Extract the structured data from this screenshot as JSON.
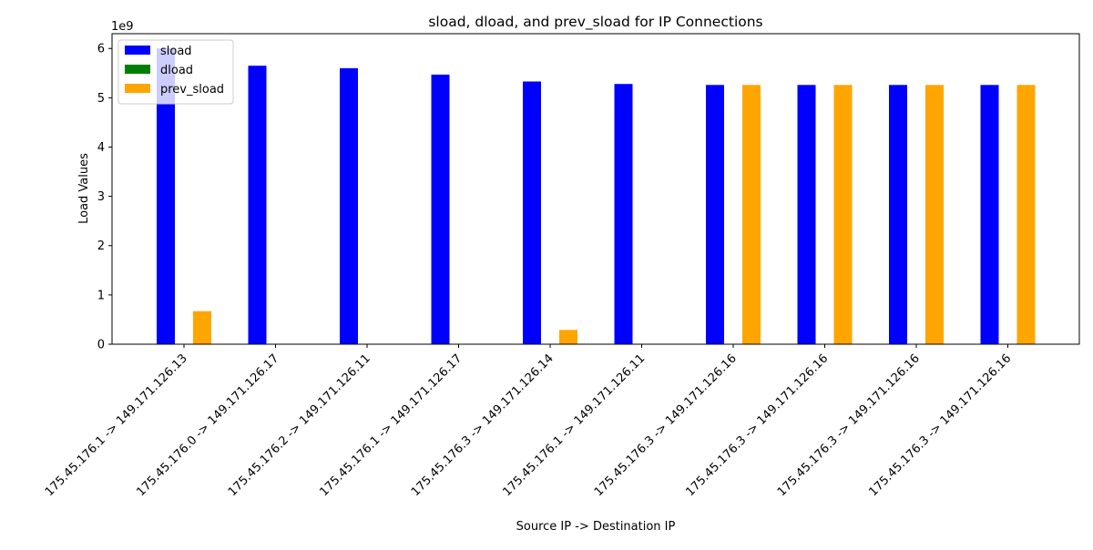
{
  "chart_data": {
    "type": "bar",
    "title": "sload, dload, and prev_sload for IP Connections",
    "xlabel": "Source IP -> Destination IP",
    "ylabel": "Load Values",
    "y_offset_label": "1e9",
    "ylim": [
      0,
      6.3
    ],
    "y_ticks": [
      0,
      1,
      2,
      3,
      4,
      5,
      6
    ],
    "grid": false,
    "legend_position": "top-left",
    "categories": [
      "175.45.176.1  -> 149.171.126.13",
      "175.45.176.0  -> 149.171.126.17",
      "175.45.176.2  -> 149.171.126.11",
      "175.45.176.1  -> 149.171.126.17",
      "175.45.176.3  -> 149.171.126.14",
      "175.45.176.1  -> 149.171.126.11",
      "175.45.176.3  -> 149.171.126.16",
      "175.45.176.3  -> 149.171.126.16",
      "175.45.176.3  -> 149.171.126.16",
      "175.45.176.3  -> 149.171.126.16"
    ],
    "series": [
      {
        "name": "sload",
        "color": "#0000ff",
        "values": [
          6.0,
          5.65,
          5.6,
          5.47,
          5.33,
          5.28,
          5.26,
          5.26,
          5.26,
          5.26
        ]
      },
      {
        "name": "dload",
        "color": "#008000",
        "values": [
          0,
          0,
          0,
          0,
          0,
          0,
          0,
          0,
          0,
          0
        ]
      },
      {
        "name": "prev_sload",
        "color": "#ffa500",
        "values": [
          0.67,
          0,
          0,
          0,
          0.29,
          0,
          5.26,
          5.26,
          5.26,
          5.26
        ]
      }
    ]
  }
}
